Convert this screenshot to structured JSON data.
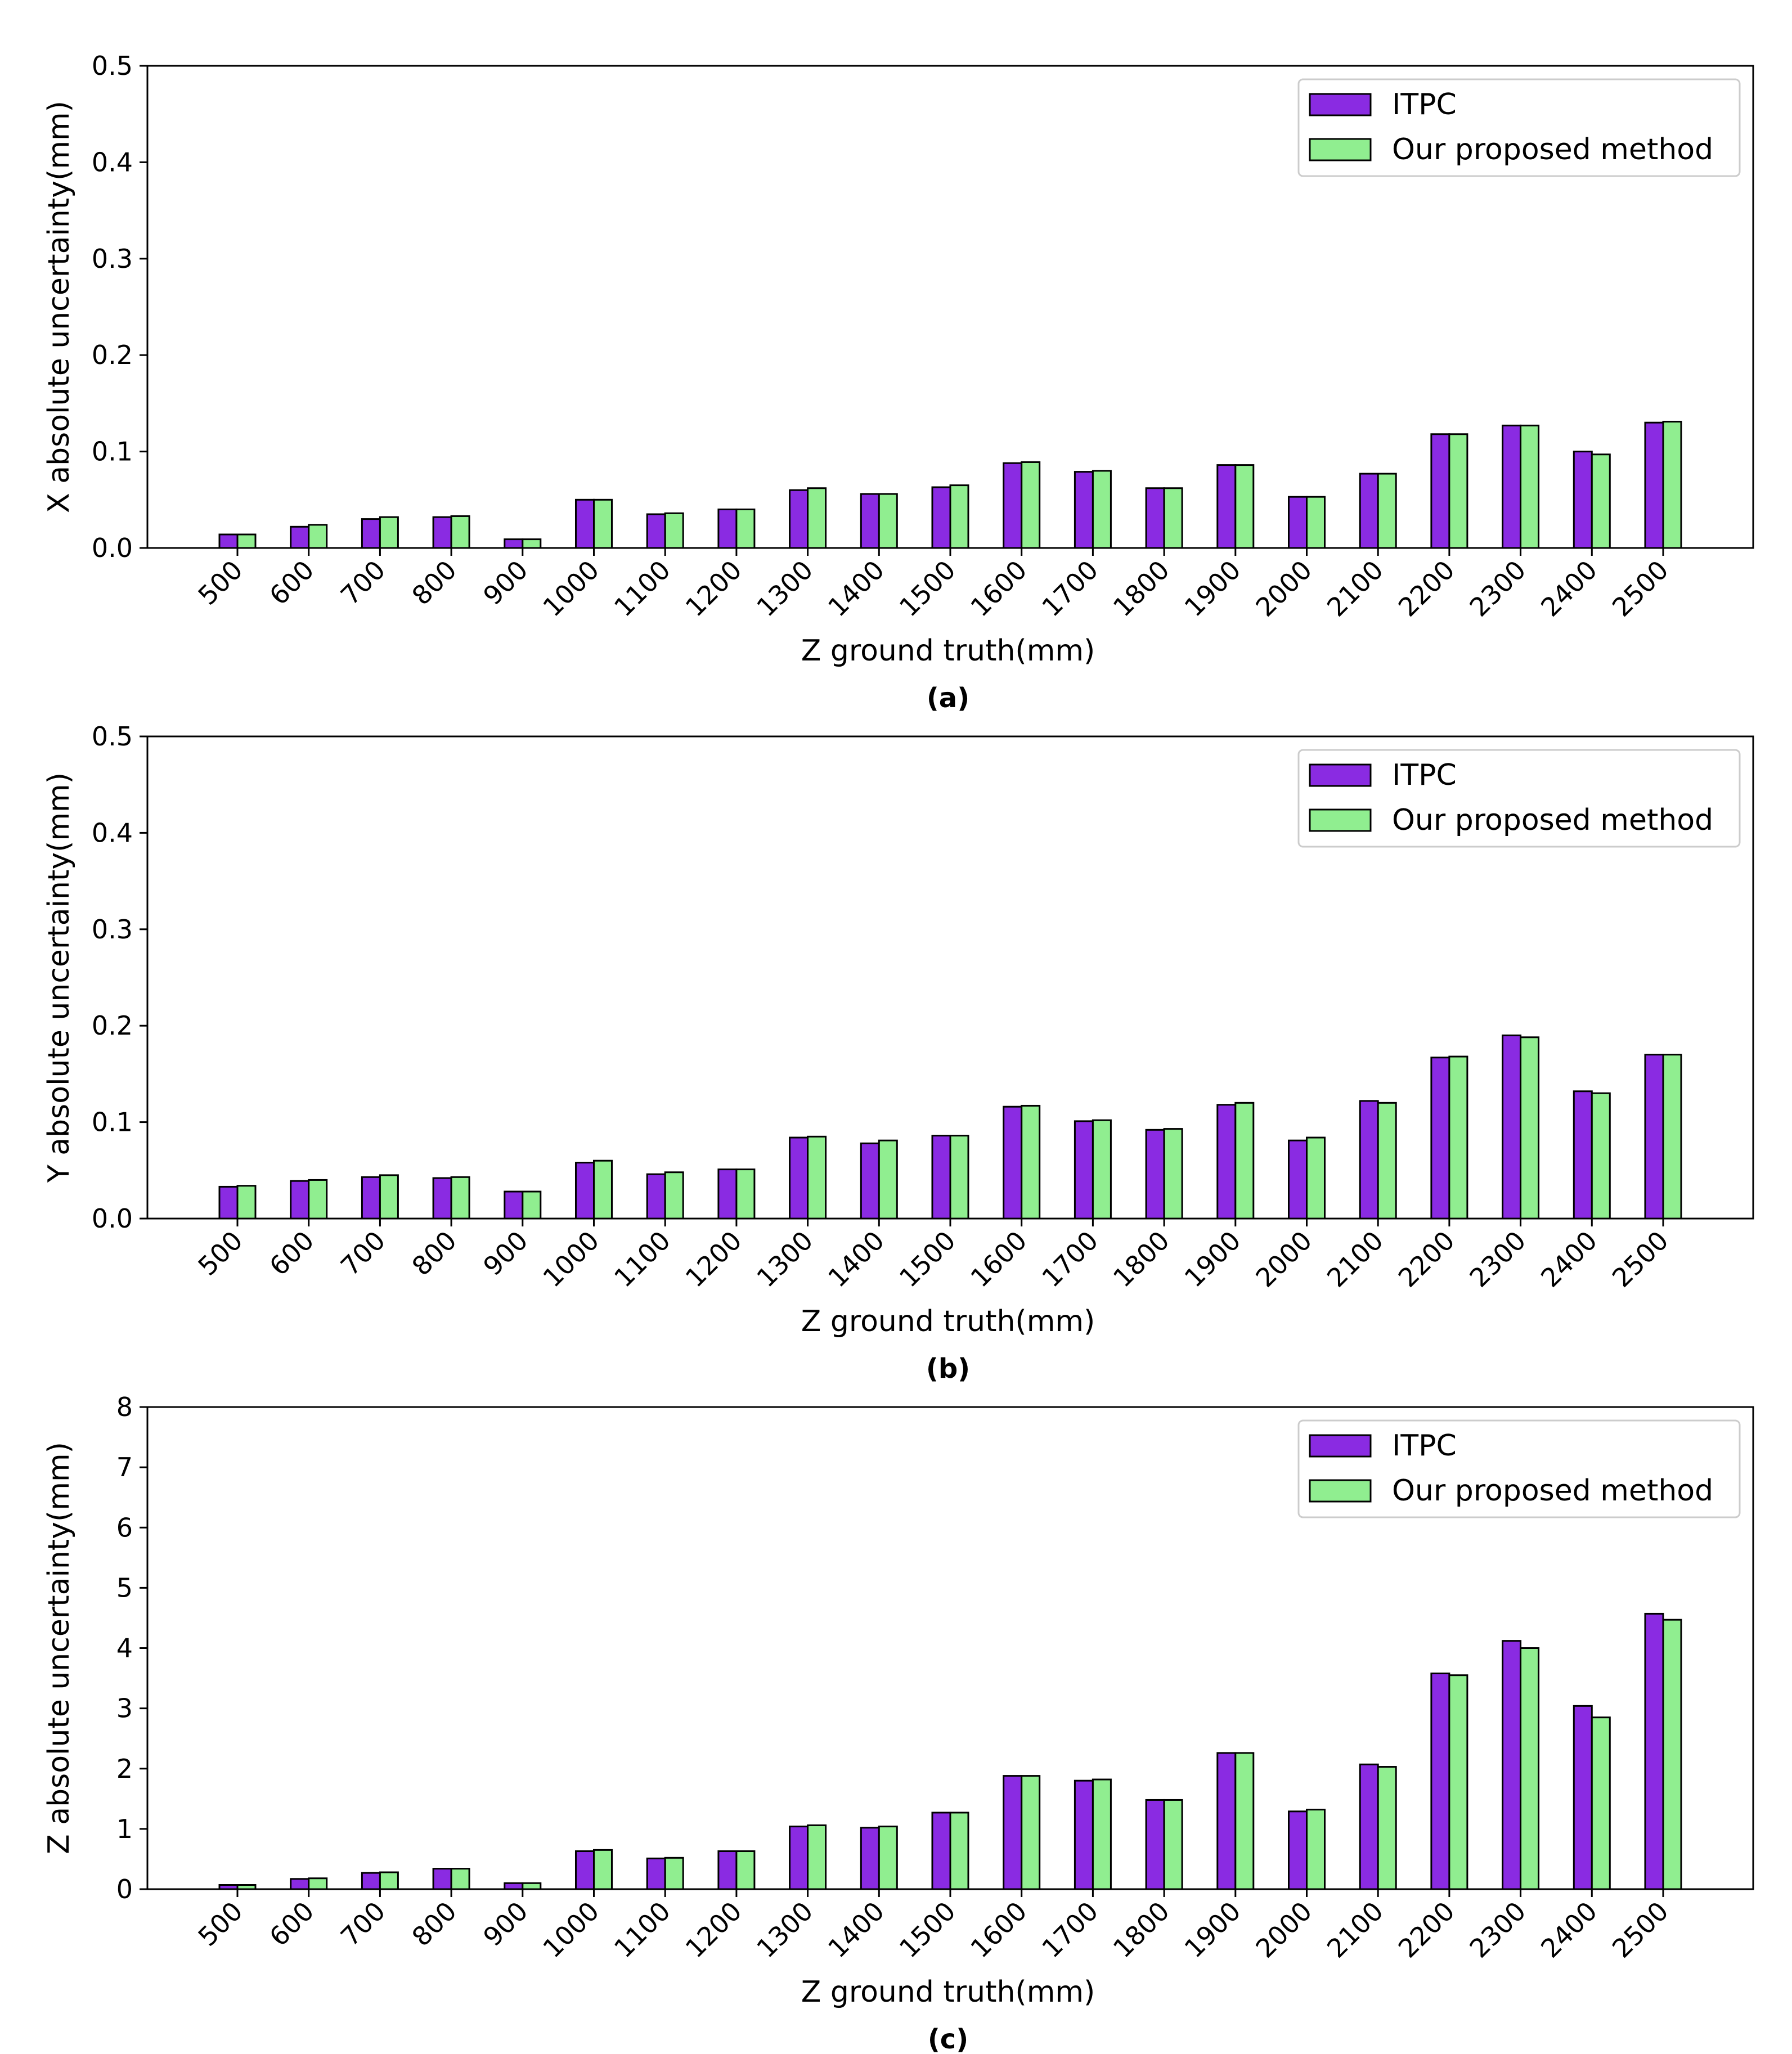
{
  "colors": {
    "itpc": "#8a2be2",
    "proposed": "#90ee90",
    "edge": "#000000"
  },
  "chart_data": [
    {
      "type": "bar",
      "caption": "(a)",
      "xlabel": "Z ground truth(mm)",
      "ylabel": "X absolute uncertainty(mm)",
      "ylim": [
        0,
        0.5
      ],
      "yticks": [
        "0.0",
        "0.1",
        "0.2",
        "0.3",
        "0.4",
        "0.5"
      ],
      "categories": [
        "500",
        "600",
        "700",
        "800",
        "900",
        "1000",
        "1100",
        "1200",
        "1300",
        "1400",
        "1500",
        "1600",
        "1700",
        "1800",
        "1900",
        "2000",
        "2100",
        "2200",
        "2300",
        "2400",
        "2500"
      ],
      "legend_position": "top-right",
      "series": [
        {
          "name": "ITPC",
          "values": [
            0.014,
            0.022,
            0.03,
            0.032,
            0.009,
            0.05,
            0.035,
            0.04,
            0.06,
            0.056,
            0.063,
            0.088,
            0.079,
            0.062,
            0.086,
            0.053,
            0.077,
            0.118,
            0.127,
            0.1,
            0.13
          ]
        },
        {
          "name": "Our proposed method",
          "values": [
            0.014,
            0.024,
            0.032,
            0.033,
            0.009,
            0.05,
            0.036,
            0.04,
            0.062,
            0.056,
            0.065,
            0.089,
            0.08,
            0.062,
            0.086,
            0.053,
            0.077,
            0.118,
            0.127,
            0.097,
            0.131
          ]
        }
      ]
    },
    {
      "type": "bar",
      "caption": "(b)",
      "xlabel": "Z ground truth(mm)",
      "ylabel": "Y absolute uncertainty(mm)",
      "ylim": [
        0,
        0.5
      ],
      "yticks": [
        "0.0",
        "0.1",
        "0.2",
        "0.3",
        "0.4",
        "0.5"
      ],
      "categories": [
        "500",
        "600",
        "700",
        "800",
        "900",
        "1000",
        "1100",
        "1200",
        "1300",
        "1400",
        "1500",
        "1600",
        "1700",
        "1800",
        "1900",
        "2000",
        "2100",
        "2200",
        "2300",
        "2400",
        "2500"
      ],
      "legend_position": "top-right",
      "series": [
        {
          "name": "ITPC",
          "values": [
            0.033,
            0.039,
            0.043,
            0.042,
            0.028,
            0.058,
            0.046,
            0.051,
            0.084,
            0.078,
            0.086,
            0.116,
            0.101,
            0.092,
            0.118,
            0.081,
            0.122,
            0.167,
            0.19,
            0.132,
            0.17
          ]
        },
        {
          "name": "Our proposed method",
          "values": [
            0.034,
            0.04,
            0.045,
            0.043,
            0.028,
            0.06,
            0.048,
            0.051,
            0.085,
            0.081,
            0.086,
            0.117,
            0.102,
            0.093,
            0.12,
            0.084,
            0.12,
            0.168,
            0.188,
            0.13,
            0.17
          ]
        }
      ]
    },
    {
      "type": "bar",
      "caption": "(c)",
      "xlabel": "Z ground truth(mm)",
      "ylabel": "Z absolute uncertainty(mm)",
      "ylim": [
        0,
        8
      ],
      "yticks": [
        "0",
        "1",
        "2",
        "3",
        "4",
        "5",
        "6",
        "7",
        "8"
      ],
      "categories": [
        "500",
        "600",
        "700",
        "800",
        "900",
        "1000",
        "1100",
        "1200",
        "1300",
        "1400",
        "1500",
        "1600",
        "1700",
        "1800",
        "1900",
        "2000",
        "2100",
        "2200",
        "2300",
        "2400",
        "2500"
      ],
      "legend_position": "top-right",
      "series": [
        {
          "name": "ITPC",
          "values": [
            0.07,
            0.17,
            0.27,
            0.34,
            0.1,
            0.63,
            0.51,
            0.63,
            1.04,
            1.02,
            1.27,
            1.88,
            1.8,
            1.48,
            2.26,
            1.29,
            2.07,
            3.58,
            4.12,
            3.04,
            4.57
          ]
        },
        {
          "name": "Our proposed method",
          "values": [
            0.07,
            0.18,
            0.28,
            0.34,
            0.1,
            0.65,
            0.52,
            0.63,
            1.06,
            1.04,
            1.27,
            1.88,
            1.82,
            1.48,
            2.26,
            1.32,
            2.03,
            3.55,
            4.0,
            2.85,
            4.47
          ]
        }
      ]
    }
  ]
}
